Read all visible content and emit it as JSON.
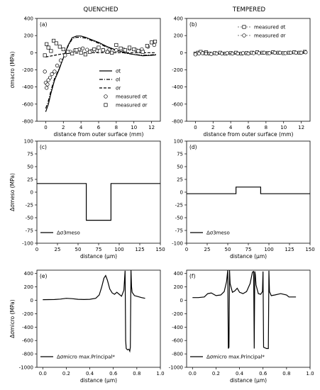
{
  "column_titles": [
    "QUENCHED",
    "TEMPERED"
  ],
  "chart_data": [
    {
      "id": "a",
      "type": "line",
      "panel_label": "(a)",
      "xlabel": "distance from outer surface (mm)",
      "ylabel": "σmacro (MPa)",
      "xlim": [
        -1,
        13
      ],
      "ylim": [
        -800,
        400
      ],
      "xticks": [
        0,
        2,
        4,
        6,
        8,
        10,
        12
      ],
      "yticks": [
        -800,
        -600,
        -400,
        -200,
        0,
        200,
        400
      ],
      "legend": "lower-right",
      "series": [
        {
          "name": "σt",
          "style": "solid",
          "x": [
            0,
            0.3,
            0.6,
            1.0,
            1.5,
            2.0,
            2.5,
            3.0,
            3.5,
            4.0,
            4.5,
            5.0,
            5.5,
            6.0,
            6.5,
            7.0,
            8.0,
            9.0,
            10.0,
            11.0,
            12.0,
            12.5
          ],
          "y": [
            -690,
            -600,
            -470,
            -320,
            -200,
            -60,
            80,
            175,
            195,
            195,
            180,
            160,
            140,
            120,
            95,
            70,
            30,
            0,
            -20,
            -35,
            -30,
            -25
          ]
        },
        {
          "name": "σl",
          "style": "dashdot",
          "x": [
            0,
            0.3,
            0.6,
            1.0,
            1.5,
            2.0,
            2.5,
            3.0,
            3.5,
            4.0,
            4.5,
            5.0,
            5.5,
            6.0,
            6.5,
            7.0,
            8.0,
            9.0,
            10.0,
            11.0,
            12.0,
            12.5
          ],
          "y": [
            -650,
            -560,
            -440,
            -300,
            -190,
            -60,
            70,
            160,
            180,
            180,
            170,
            150,
            130,
            110,
            85,
            60,
            25,
            -5,
            -20,
            -30,
            -25,
            -20
          ]
        },
        {
          "name": "σr",
          "style": "dashed",
          "x": [
            0,
            0.5,
            1.0,
            1.5,
            2.0,
            3.0,
            4.0,
            5.0,
            6.0,
            7.0,
            8.0,
            9.0,
            10.0,
            11.0,
            12.0,
            12.5
          ],
          "y": [
            -50,
            -40,
            -30,
            -20,
            -12,
            -6,
            -2,
            0,
            0,
            0,
            0,
            0,
            0,
            0,
            0,
            0
          ]
        },
        {
          "name": "measured σt",
          "style": "marker-circle",
          "x": [
            -0.1,
            0,
            0.1,
            0.2,
            0.3,
            0.5,
            0.7,
            1.0,
            1.3,
            1.7,
            2.2,
            2.8,
            3.3,
            3.8,
            4.2,
            4.7,
            5.2,
            5.8,
            6.5,
            7.2,
            8.0,
            8.8,
            9.5,
            10.2,
            10.9,
            11.6,
            12.3
          ],
          "y": [
            -220,
            -350,
            -410,
            -370,
            -320,
            -290,
            -250,
            -220,
            -150,
            -90,
            -30,
            10,
            30,
            40,
            50,
            35,
            20,
            25,
            30,
            35,
            30,
            40,
            45,
            35,
            40,
            70,
            90
          ]
        },
        {
          "name": "measured σr",
          "style": "marker-square",
          "x": [
            -0.1,
            0.1,
            0.3,
            0.6,
            0.9,
            1.2,
            1.6,
            2.0,
            2.5,
            3.0,
            3.5,
            4.0,
            4.5,
            5.0,
            5.5,
            6.0,
            6.5,
            7.0,
            7.5,
            8.0,
            8.5,
            9.0,
            9.5,
            10.0,
            10.5,
            11.0,
            11.5,
            12.0,
            12.4
          ],
          "y": [
            -30,
            100,
            60,
            20,
            140,
            110,
            70,
            40,
            10,
            -10,
            30,
            0,
            -20,
            10,
            40,
            60,
            30,
            10,
            0,
            90,
            50,
            30,
            60,
            40,
            20,
            10,
            80,
            120,
            130
          ]
        }
      ]
    },
    {
      "id": "b",
      "type": "line",
      "panel_label": "(b)",
      "xlabel": "distance from outer surface (mm)",
      "ylabel": "",
      "xlim": [
        -1,
        13
      ],
      "ylim": [
        -800,
        400
      ],
      "xticks": [
        0,
        2,
        4,
        6,
        8,
        10,
        12
      ],
      "yticks": [
        -800,
        -600,
        -400,
        -200,
        0,
        200,
        400
      ],
      "legend": "upper-right",
      "series": [
        {
          "name": "measured σt",
          "style": "marker-square-dashed",
          "x": [
            0,
            0.3,
            0.6,
            0.9,
            1.2,
            1.6,
            2.2,
            2.8,
            3.4,
            4.0,
            4.6,
            5.2,
            5.8,
            6.4,
            7.0,
            7.6,
            8.2,
            8.8,
            9.4,
            10.0,
            10.6,
            11.2,
            11.8,
            12.4
          ],
          "y": [
            -10,
            0,
            10,
            -5,
            5,
            -10,
            -5,
            0,
            -10,
            -5,
            0,
            -10,
            -5,
            0,
            5,
            0,
            -5,
            5,
            0,
            -5,
            0,
            5,
            0,
            10
          ]
        },
        {
          "name": "measured σr",
          "style": "marker-circle-dashed",
          "x": [
            0,
            0.4,
            0.8,
            1.2,
            1.8,
            2.4,
            3.0,
            3.6,
            4.2,
            4.8,
            5.4,
            6.0,
            6.6,
            7.2,
            7.8,
            8.4,
            9.0,
            9.6,
            10.2,
            10.8,
            11.4,
            12.0,
            12.5
          ],
          "y": [
            -20,
            -10,
            -5,
            -10,
            -15,
            -10,
            -10,
            -5,
            -10,
            -10,
            -5,
            -10,
            -5,
            -5,
            0,
            -5,
            0,
            0,
            -5,
            0,
            0,
            0,
            5
          ]
        }
      ]
    },
    {
      "id": "c",
      "type": "line",
      "panel_label": "(c)",
      "xlabel": "distance (μm)",
      "ylabel": "Δσmeso (MPa)",
      "xlim": [
        0,
        150
      ],
      "ylim": [
        -100,
        100
      ],
      "xticks": [
        0,
        25,
        50,
        75,
        100,
        125,
        150
      ],
      "yticks": [
        -100,
        -75,
        -50,
        -25,
        0,
        25,
        50,
        75,
        100
      ],
      "legend": "lower-left",
      "series": [
        {
          "name": "Δσ3meso",
          "style": "solid",
          "x": [
            0,
            60,
            60,
            90,
            90,
            150
          ],
          "y": [
            17,
            17,
            -55,
            -55,
            17,
            17
          ]
        }
      ]
    },
    {
      "id": "d",
      "type": "line",
      "panel_label": "(d)",
      "xlabel": "distance (μm)",
      "ylabel": "",
      "xlim": [
        0,
        150
      ],
      "ylim": [
        -100,
        100
      ],
      "xticks": [
        0,
        25,
        50,
        75,
        100,
        125,
        150
      ],
      "yticks": [
        -100,
        -75,
        -50,
        -25,
        0,
        25,
        50,
        75,
        100
      ],
      "legend": "lower-left",
      "series": [
        {
          "name": "Δσ3meso",
          "style": "solid",
          "x": [
            0,
            60,
            60,
            90,
            90,
            150
          ],
          "y": [
            -3,
            -3,
            10,
            10,
            -3,
            -3
          ]
        }
      ]
    },
    {
      "id": "e",
      "type": "line",
      "panel_label": "(e)",
      "xlabel": "distance (μm)",
      "ylabel": "Δσmicro (MPa)",
      "xlim": [
        -0.05,
        1.0
      ],
      "ylim": [
        -1000,
        450
      ],
      "xticks": [
        0.0,
        0.2,
        0.4,
        0.6,
        0.8,
        1.0
      ],
      "yticks": [
        -1000,
        -800,
        -600,
        -400,
        -200,
        0,
        200,
        400
      ],
      "legend": "lower-left",
      "series": [
        {
          "name": "Δσmicro max.Principal*",
          "style": "solid",
          "x": [
            0.0,
            0.1,
            0.15,
            0.2,
            0.25,
            0.3,
            0.35,
            0.4,
            0.45,
            0.48,
            0.5,
            0.52,
            0.535,
            0.55,
            0.57,
            0.59,
            0.61,
            0.63,
            0.65,
            0.67,
            0.69,
            0.7,
            0.705,
            0.71,
            0.715,
            0.72,
            0.725,
            0.73,
            0.735,
            0.74,
            0.745,
            0.75,
            0.755,
            0.76,
            0.78,
            0.8,
            0.84,
            0.87
          ],
          "y": [
            10,
            12,
            18,
            30,
            25,
            15,
            12,
            15,
            30,
            80,
            190,
            330,
            370,
            300,
            170,
            110,
            90,
            120,
            90,
            60,
            150,
            440,
            -600,
            -720,
            -730,
            -740,
            -735,
            -730,
            -740,
            -760,
            -700,
            450,
            200,
            120,
            70,
            60,
            40,
            30
          ]
        }
      ]
    },
    {
      "id": "f",
      "type": "line",
      "panel_label": "(f)",
      "xlabel": "distance (μm)",
      "ylabel": "",
      "xlim": [
        -0.05,
        1.0
      ],
      "ylim": [
        -1000,
        450
      ],
      "xticks": [
        0.0,
        0.2,
        0.4,
        0.6,
        0.8,
        1.0
      ],
      "yticks": [
        -1000,
        -800,
        -600,
        -400,
        -200,
        0,
        200,
        400
      ],
      "legend": "lower-left",
      "series": [
        {
          "name": "Δσmicro max.Principal*",
          "style": "solid",
          "x": [
            0.0,
            0.05,
            0.1,
            0.13,
            0.16,
            0.2,
            0.24,
            0.27,
            0.29,
            0.3,
            0.305,
            0.31,
            0.315,
            0.32,
            0.34,
            0.36,
            0.38,
            0.4,
            0.43,
            0.46,
            0.49,
            0.51,
            0.52,
            0.525,
            0.53,
            0.535,
            0.54,
            0.56,
            0.58,
            0.595,
            0.6,
            0.605,
            0.63,
            0.645,
            0.65,
            0.655,
            0.67,
            0.7,
            0.75,
            0.8,
            0.82,
            0.86,
            0.88
          ],
          "y": [
            40,
            40,
            50,
            100,
            110,
            70,
            80,
            130,
            280,
            450,
            -720,
            -700,
            450,
            250,
            120,
            140,
            180,
            120,
            100,
            130,
            250,
            420,
            430,
            -720,
            430,
            380,
            230,
            100,
            90,
            130,
            430,
            -700,
            -720,
            -720,
            440,
            130,
            70,
            80,
            100,
            80,
            50,
            50,
            50
          ]
        }
      ]
    }
  ]
}
